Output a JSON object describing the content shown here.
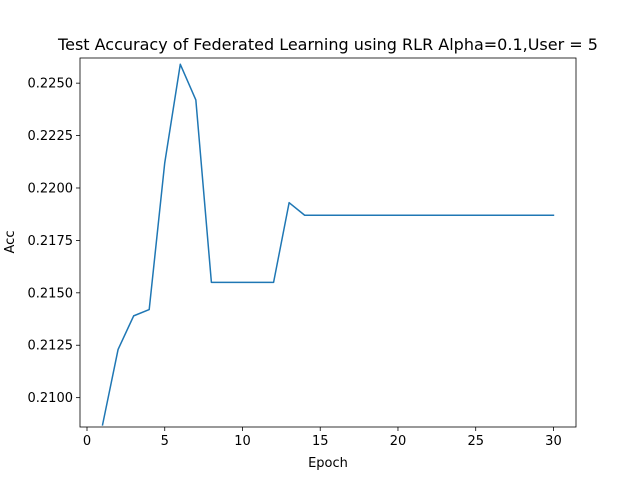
{
  "chart_data": {
    "type": "line",
    "title": "Test Accuracy of Federated Learning  using RLR Alpha=0.1,User = 5",
    "xlabel": "Epoch",
    "ylabel": "Acc",
    "xlim": [
      -0.45,
      31.45
    ],
    "ylim": [
      0.2086,
      0.2262
    ],
    "xticks": [
      0,
      5,
      10,
      15,
      20,
      25,
      30
    ],
    "xtick_labels": [
      "0",
      "5",
      "10",
      "15",
      "20",
      "25",
      "30"
    ],
    "yticks": [
      0.21,
      0.2125,
      0.215,
      0.2175,
      0.22,
      0.2225,
      0.225
    ],
    "ytick_labels": [
      "0.2100",
      "0.2125",
      "0.2150",
      "0.2175",
      "0.2200",
      "0.2225",
      "0.2250"
    ],
    "grid": false,
    "series": [
      {
        "color": "#1f77b4",
        "x": [
          1,
          2,
          3,
          4,
          5,
          6,
          7,
          8,
          9,
          10,
          11,
          12,
          13,
          14,
          15,
          16,
          17,
          18,
          19,
          20,
          21,
          22,
          23,
          24,
          25,
          26,
          27,
          28,
          29,
          30
        ],
        "y": [
          0.2087,
          0.2123,
          0.2139,
          0.2142,
          0.2212,
          0.2259,
          0.2242,
          0.2155,
          0.2155,
          0.2155,
          0.2155,
          0.2155,
          0.2193,
          0.2187,
          0.2187,
          0.2187,
          0.2187,
          0.2187,
          0.2187,
          0.2187,
          0.2187,
          0.2187,
          0.2187,
          0.2187,
          0.2187,
          0.2187,
          0.2187,
          0.2187,
          0.2187,
          0.2187
        ]
      }
    ]
  }
}
